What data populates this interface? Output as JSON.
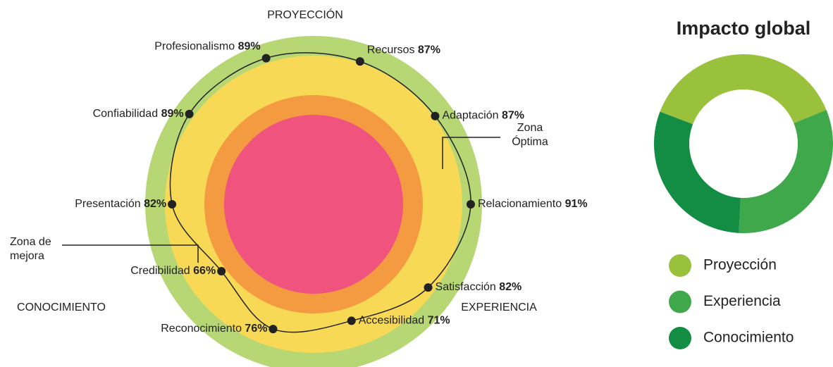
{
  "chart_data": [
    {
      "type": "radial",
      "categories": [
        "Profesionalismo",
        "Recursos",
        "Adaptación",
        "Relacionamiento",
        "Satisfacción",
        "Accesibilidad",
        "Reconocimiento",
        "Credibilidad",
        "Presentación",
        "Confiabilidad"
      ],
      "values": [
        89,
        87,
        87,
        91,
        82,
        71,
        76,
        66,
        82,
        89
      ],
      "value_labels": [
        "89%",
        "87%",
        "87%",
        "91%",
        "82%",
        "71%",
        "76%",
        "66%",
        "82%",
        "89%"
      ],
      "rlim": [
        0,
        100
      ],
      "sections": [
        "PROYECCIÓN",
        "CONOCIMIENTO",
        "EXPERIENCIA"
      ],
      "annotations": [
        "Zona Óptima",
        "Zona de mejora"
      ],
      "color": "#222222"
    },
    {
      "type": "donut",
      "title": "Impacto global",
      "categories": [
        "Proyección",
        "Experiencia",
        "Conocimiento"
      ],
      "values": [
        38,
        32,
        30
      ],
      "colors": [
        "#9ac13c",
        "#3fa84a",
        "#148d44"
      ]
    }
  ]
}
